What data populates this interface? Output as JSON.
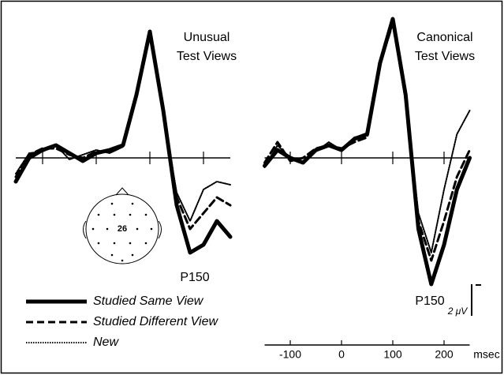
{
  "chart_data": {
    "type": "line",
    "x": [
      -150,
      -125,
      -100,
      -75,
      -50,
      -25,
      0,
      25,
      50,
      75,
      100,
      125,
      150,
      175,
      200,
      225,
      250
    ],
    "xlim": [
      -150,
      250
    ],
    "xticks": [
      -100,
      0,
      100,
      200
    ],
    "x_unit": "msec",
    "ylim": [
      -9.5,
      9
    ],
    "invert_y": true,
    "scale_bar": {
      "value": 2,
      "label": "2 μV"
    },
    "electrode": "26",
    "series": [
      {
        "name": "Studied Same View",
        "color": "#000000",
        "line_style": "solid"
      },
      {
        "name": "Studied Different View",
        "color": "#000000",
        "line_style": "dashed"
      },
      {
        "name": "New",
        "color": "#000000",
        "line_style": "dotted"
      }
    ],
    "panels": [
      {
        "title_lines": [
          "Unusual",
          "Test Views"
        ],
        "annotation": "P150",
        "series": [
          {
            "values": [
              1.5,
              0,
              -0.5,
              -0.8,
              -0.3,
              0.2,
              -0.3,
              -0.5,
              -0.8,
              -4,
              -8,
              -3,
              3,
              6,
              5.5,
              4,
              5
            ]
          },
          {
            "values": [
              1.2,
              -0.2,
              -0.6,
              -0.6,
              -0.2,
              0,
              -0.4,
              -0.4,
              -0.8,
              -4,
              -8,
              -3,
              2.5,
              4.5,
              3.5,
              2.5,
              3
            ]
          },
          {
            "values": [
              1,
              -0.3,
              -0.4,
              -0.8,
              0.1,
              -0.2,
              -0.5,
              -0.3,
              -0.7,
              -4.2,
              -7.6,
              -2.8,
              2.2,
              4,
              2,
              1.5,
              1.7
            ]
          }
        ]
      },
      {
        "title_lines": [
          "Canonical",
          "Test Views"
        ],
        "annotation": "P150",
        "series": [
          {
            "values": [
              0.5,
              -0.5,
              0,
              0.3,
              -0.5,
              -0.8,
              -0.5,
              -1.2,
              -1.5,
              -6,
              -8.8,
              -4,
              4.5,
              8,
              5.5,
              2,
              0
            ]
          },
          {
            "values": [
              0.3,
              -1,
              0.2,
              0,
              -0.6,
              -0.8,
              -0.6,
              -1,
              -1.3,
              -6,
              -8.5,
              -3.8,
              4,
              6.5,
              4,
              1.2,
              -0.5
            ]
          },
          {
            "values": [
              0.6,
              -0.8,
              0,
              0.3,
              -0.4,
              -1,
              -0.5,
              -1.3,
              -1.5,
              -6.2,
              -8.7,
              -3.5,
              3.5,
              6,
              2,
              -1.5,
              -3
            ]
          }
        ]
      }
    ]
  }
}
